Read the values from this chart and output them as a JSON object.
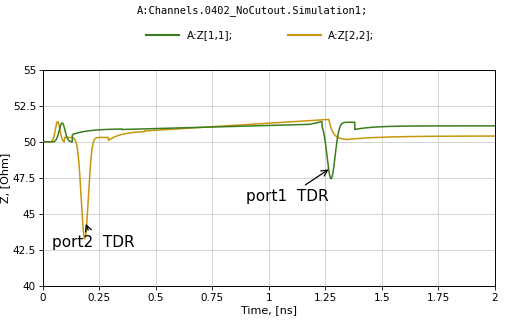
{
  "title_line1": "A:Channels.0402_NoCutout.Simulation1;",
  "legend_z11_label": "A:Z[1,1];",
  "legend_z22_label": "A:Z[2,2];",
  "legend_z11_color": "#3a7d1e",
  "legend_z22_color": "#c8960c",
  "ylabel": "Z, [Ohm]",
  "xlabel": "Time, [ns]",
  "xlim": [
    0,
    2
  ],
  "ylim": [
    40,
    55
  ],
  "yticks": [
    40,
    42.5,
    45,
    47.5,
    50,
    52.5,
    55
  ],
  "xticks": [
    0,
    0.25,
    0.5,
    0.75,
    1,
    1.25,
    1.5,
    1.75,
    2
  ],
  "annotation_port1": "port1  TDR",
  "annotation_port2": "port2  TDR",
  "grid_color": "#cccccc",
  "background_color": "#ffffff",
  "font_size_title": 7.5,
  "font_size_labels": 8,
  "font_size_ticks": 7.5,
  "font_size_annotation": 11,
  "font_size_legend": 7.5
}
